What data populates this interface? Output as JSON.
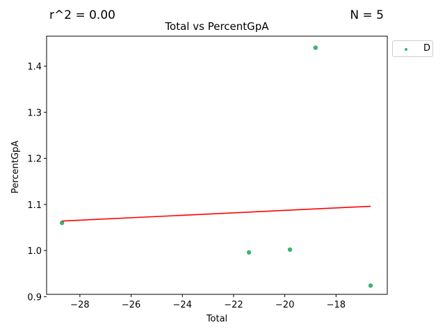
{
  "stats": {
    "r2_text": "r^2 = 0.00",
    "n_text": "N = 5"
  },
  "colors": {
    "points": "#3cb371",
    "fit_line": "#ff0000",
    "axis": "#000000",
    "background": "#ffffff"
  },
  "chart_data": {
    "type": "scatter",
    "title": "Total vs PercentGpA",
    "xlabel": "Total",
    "ylabel": "PercentGpA",
    "xlim": [
      -29.3,
      -16.0
    ],
    "ylim": [
      0.905,
      1.465
    ],
    "x_ticks": [
      -28,
      -26,
      -24,
      -22,
      -20,
      -18
    ],
    "x_tick_labels": [
      "−28",
      "−26",
      "−24",
      "−22",
      "−20",
      "−18"
    ],
    "y_ticks": [
      0.9,
      1.0,
      1.1,
      1.2,
      1.3,
      1.4
    ],
    "y_tick_labels": [
      "0.9",
      "1.0",
      "1.1",
      "1.2",
      "1.3",
      "1.4"
    ],
    "grid": false,
    "legend_position": "outside-top-right",
    "series": [
      {
        "name": "D",
        "x": [
          -28.7,
          -21.4,
          -19.8,
          -18.8,
          -16.65
        ],
        "y": [
          1.06,
          0.996,
          1.002,
          1.44,
          0.924
        ]
      }
    ],
    "fit_line": {
      "x": [
        -28.7,
        -16.65
      ],
      "y": [
        1.064,
        1.096
      ]
    }
  }
}
